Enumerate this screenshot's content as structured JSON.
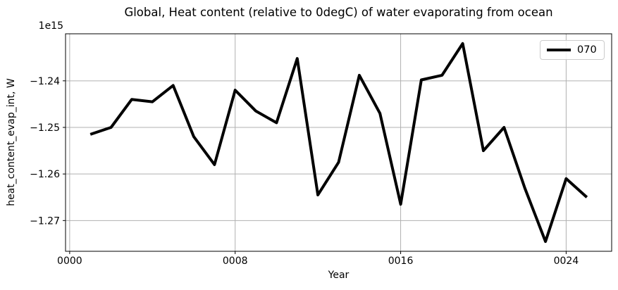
{
  "figure": {
    "background": "#ffffff"
  },
  "chart_data": {
    "type": "line",
    "title": "Global, Heat content (relative to 0degC) of water evaporating from ocean",
    "xlabel": "Year",
    "ylabel": "heat_content_evap_int, W",
    "y_offset_label": "1e15",
    "unit_multiplier": "1e15",
    "x": [
      1,
      2,
      3,
      4,
      5,
      6,
      7,
      8,
      9,
      10,
      11,
      12,
      13,
      14,
      15,
      16,
      17,
      18,
      19,
      20,
      21,
      22,
      23,
      24,
      25
    ],
    "series": [
      {
        "name": "070",
        "color": "#000000",
        "linewidth": 4,
        "values": [
          -1.2515,
          -1.25,
          -1.244,
          -1.2445,
          -1.241,
          -1.252,
          -1.258,
          -1.242,
          -1.2465,
          -1.249,
          -1.2352,
          -1.2645,
          -1.2575,
          -1.2388,
          -1.247,
          -1.2665,
          -1.2398,
          -1.2388,
          -1.232,
          -1.255,
          -1.25,
          -1.263,
          -1.2745,
          -1.261,
          -1.265
        ]
      }
    ],
    "xlim": [
      -0.2,
      26.2
    ],
    "ylim": [
      -1.2766,
      -1.2299
    ],
    "xticks": {
      "values": [
        0,
        8,
        16,
        24
      ],
      "labels": [
        "0000",
        "0008",
        "0016",
        "0024"
      ]
    },
    "yticks": {
      "values": [
        -1.24,
        -1.25,
        -1.26,
        -1.27
      ],
      "labels": [
        "−1.24",
        "−1.25",
        "−1.26",
        "−1.27"
      ]
    },
    "grid": true,
    "grid_color": "#b0b0b0",
    "spine_color": "#000000",
    "tick_label_color": "#000000",
    "legend": {
      "position": "upper right",
      "entries": [
        "070"
      ]
    }
  }
}
